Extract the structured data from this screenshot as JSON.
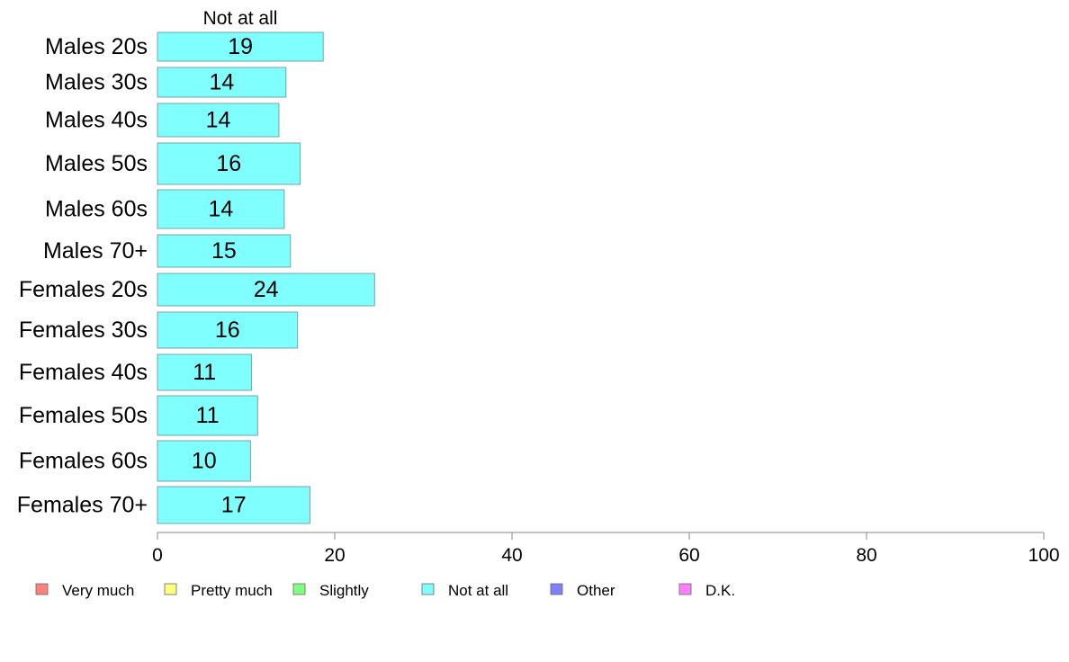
{
  "chart_data": {
    "type": "bar",
    "orientation": "horizontal",
    "series_label": "Not at all",
    "categories": [
      "Males 20s",
      "Males 30s",
      "Males 40s",
      "Males 50s",
      "Males 60s",
      "Males 70+",
      "Females 20s",
      "Females 30s",
      "Females 40s",
      "Females 50s",
      "Females 60s",
      "Females 70+"
    ],
    "values": [
      18.7,
      14.5,
      13.7,
      16.1,
      14.3,
      15.0,
      24.5,
      15.8,
      10.6,
      11.3,
      10.5,
      17.2
    ],
    "data_labels": [
      "19",
      "14",
      "14",
      "16",
      "14",
      "15",
      "24",
      "16",
      "11",
      "11",
      "10",
      "17"
    ],
    "xlim": [
      0,
      100
    ],
    "xticks": [
      0,
      20,
      40,
      60,
      80,
      100
    ],
    "xtick_labels": [
      "0",
      "20",
      "40",
      "60",
      "80",
      "100"
    ],
    "grid": false,
    "legend_position": "bottom",
    "legend": [
      {
        "label": "Very much",
        "color": "#ff8080"
      },
      {
        "label": "Pretty much",
        "color": "#ffff80"
      },
      {
        "label": "Slightly",
        "color": "#80ff80"
      },
      {
        "label": "Not at all",
        "color": "#80ffff"
      },
      {
        "label": "Other",
        "color": "#8080ff"
      },
      {
        "label": "D.K.",
        "color": "#ff80ff"
      }
    ],
    "bar_color": "#80ffff"
  }
}
